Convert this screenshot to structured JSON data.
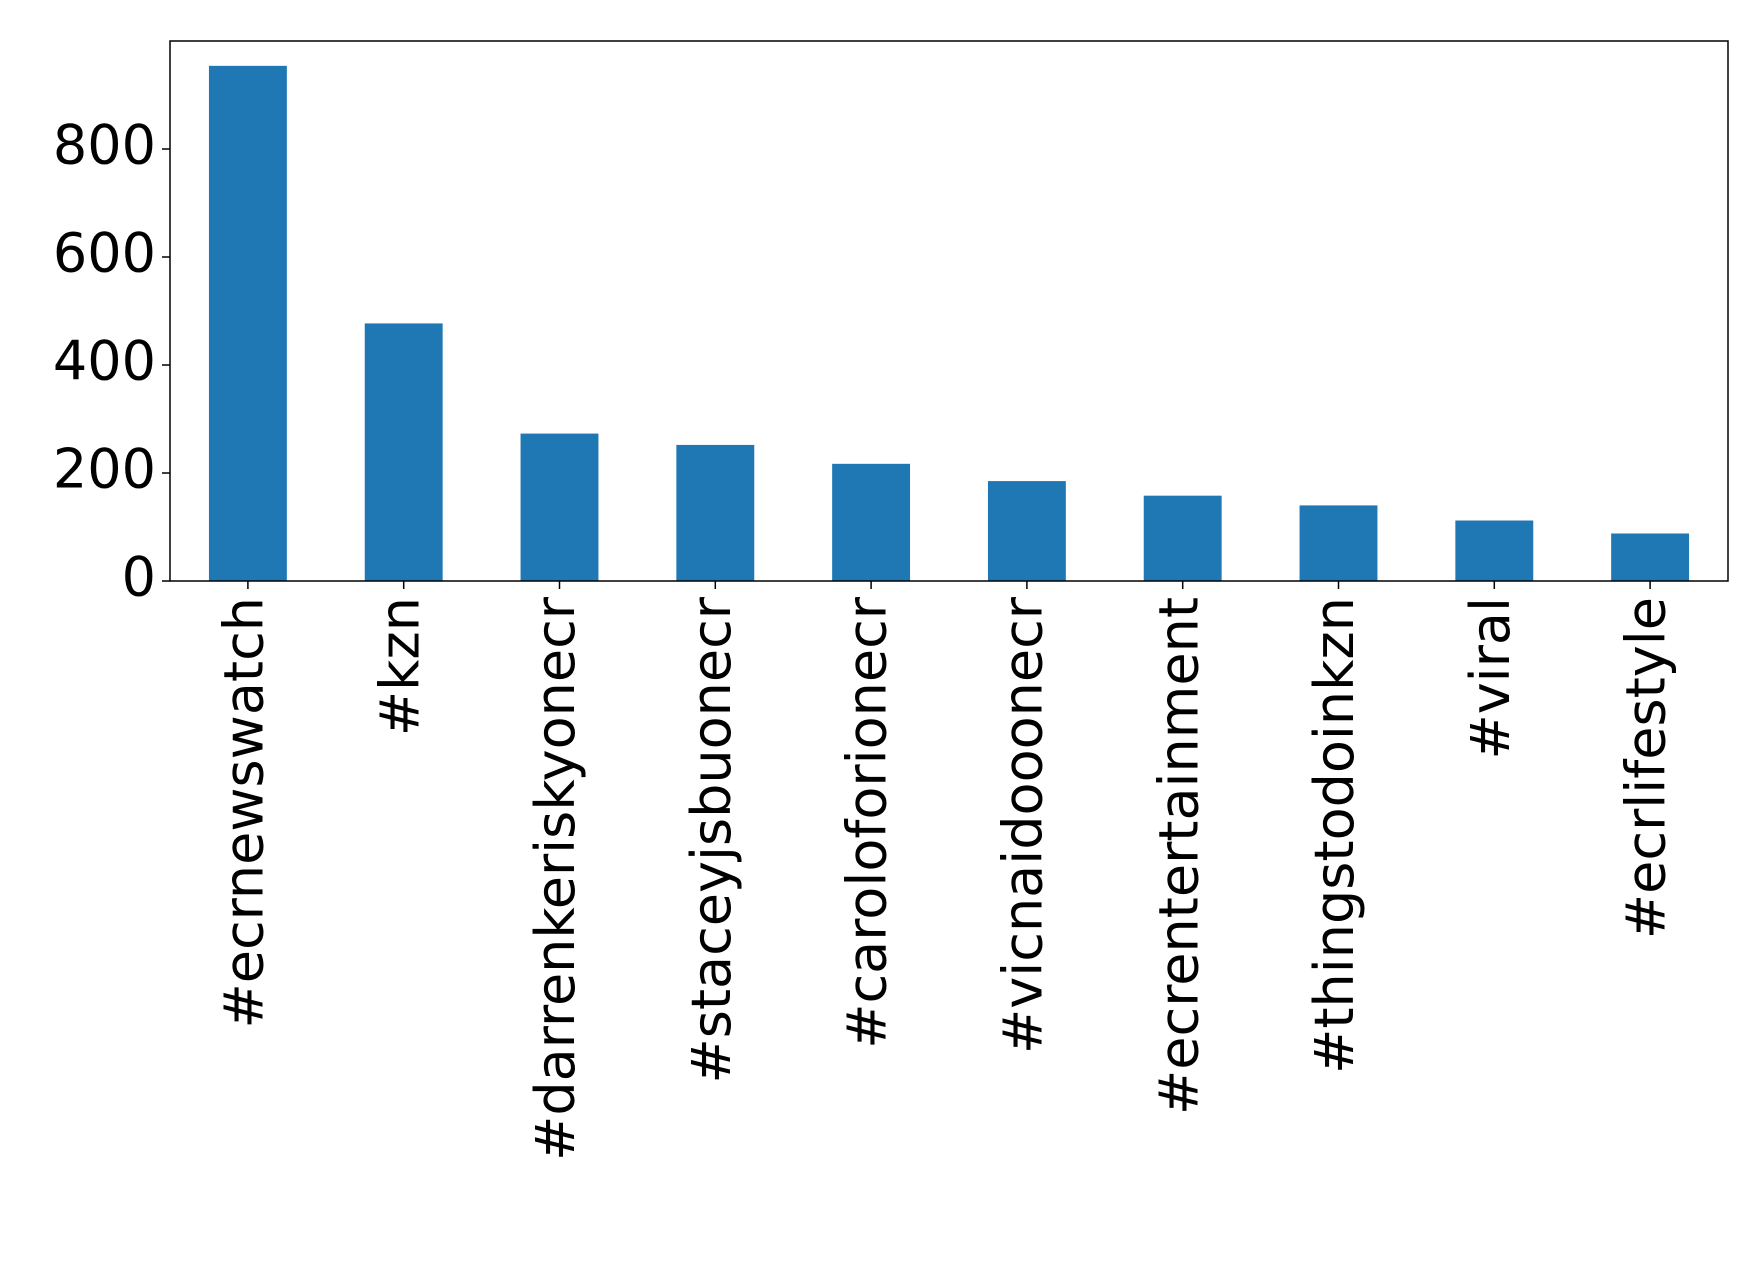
{
  "chart_data": {
    "type": "bar",
    "categories": [
      "#ecrnewswatch",
      "#kzn",
      "#darrenkeriskyonecr",
      "#staceyjsbuonecr",
      "#caroloforionecr",
      "#vicnaidooonecr",
      "#ecrentertainment",
      "#thingstodoinkzn",
      "#viral",
      "#ecrlifestyle"
    ],
    "values": [
      954,
      477,
      273,
      252,
      217,
      185,
      158,
      140,
      112,
      88
    ],
    "color": "#1f77b4",
    "ylim": [
      0,
      1000
    ],
    "yticks": [
      0,
      200,
      400,
      600,
      800
    ],
    "grid": false
  }
}
